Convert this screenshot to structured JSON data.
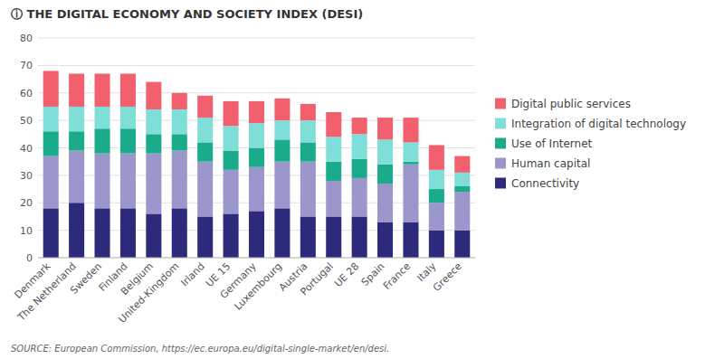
{
  "chart_data": {
    "type": "bar",
    "stacked": true,
    "title": "ⓘ THE DIGITAL ECONOMY AND SOCIETY INDEX (DESI)",
    "source": "SOURCE: European Commission, https://ec.europa.eu/digital-single-market/en/desi.",
    "categories": [
      "Denmark",
      "The Netherland",
      "Sweden",
      "Finland",
      "Belgium",
      "United-Kingdom",
      "Irland",
      "UE 15",
      "Germany",
      "Luxembourg",
      "Austria",
      "Portugal",
      "UE 28",
      "Spain",
      "France",
      "Italy",
      "Greece"
    ],
    "series": [
      {
        "name": "Connectivity",
        "color": "#2d2a7b",
        "values": [
          18,
          20,
          18,
          18,
          16,
          18,
          15,
          16,
          17,
          18,
          15,
          15,
          15,
          13,
          13,
          10,
          10
        ]
      },
      {
        "name": "Human capital",
        "color": "#9b96cc",
        "values": [
          19,
          19,
          20,
          20,
          22,
          21,
          20,
          16,
          16,
          17,
          20,
          13,
          14,
          14,
          21,
          10,
          14
        ]
      },
      {
        "name": "Use of Internet",
        "color": "#1aab8a",
        "values": [
          9,
          7,
          9,
          9,
          7,
          6,
          7,
          7,
          7,
          8,
          7,
          7,
          7,
          7,
          1,
          5,
          2
        ]
      },
      {
        "name": "Integration of digital technology",
        "color": "#80ded9",
        "values": [
          9,
          9,
          8,
          8,
          9,
          9,
          9,
          9,
          9,
          7,
          8,
          9,
          9,
          9,
          7,
          7,
          5
        ]
      },
      {
        "name": "Digital public services",
        "color": "#f2606e",
        "values": [
          13,
          12,
          12,
          12,
          10,
          6,
          8,
          9,
          8,
          8,
          6,
          9,
          6,
          8,
          9,
          9,
          6
        ]
      }
    ],
    "ylim": [
      0,
      80
    ],
    "yticks": [
      0,
      10,
      20,
      30,
      40,
      50,
      60,
      70,
      80
    ],
    "grid": true,
    "legend": "right"
  }
}
